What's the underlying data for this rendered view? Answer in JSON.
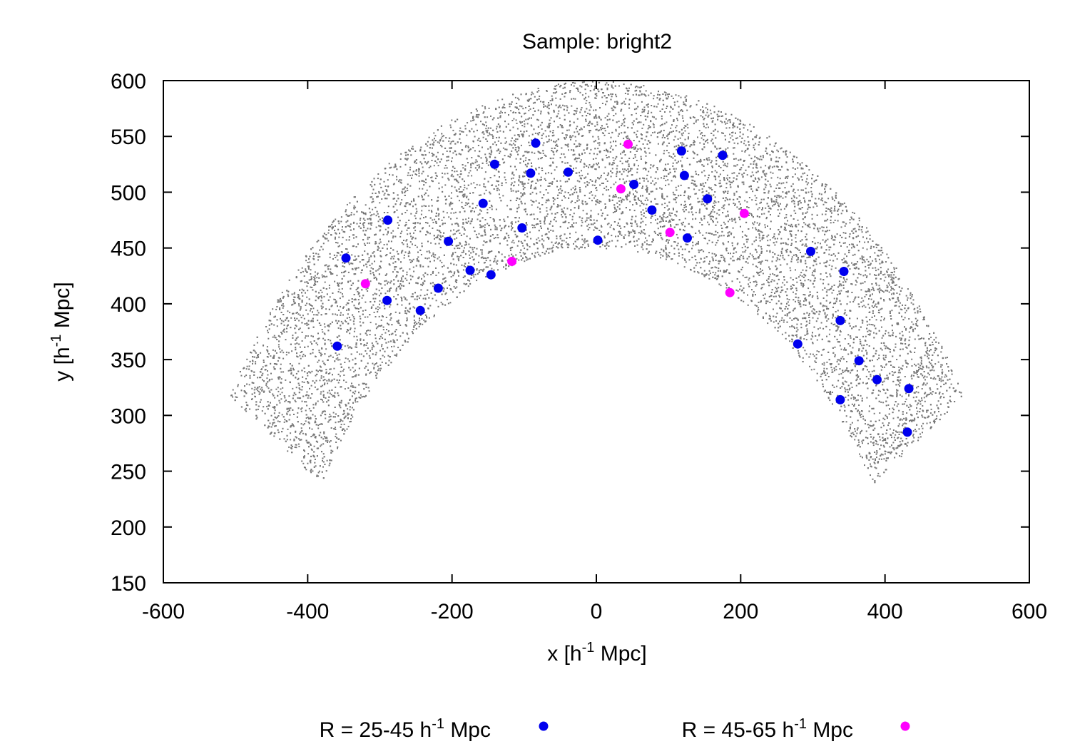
{
  "chart_data": {
    "type": "scatter",
    "title": "Sample: bright2",
    "xlabel": {
      "prefix": "x [h",
      "sup": "-1",
      "suffix": " Mpc]"
    },
    "ylabel": {
      "prefix": "y [h",
      "sup": "-1",
      "suffix": " Mpc]"
    },
    "xlim": [
      -600,
      600
    ],
    "ylim": [
      150,
      600
    ],
    "xticks": [
      -600,
      -400,
      -200,
      0,
      200,
      400,
      600
    ],
    "yticks": [
      150,
      200,
      250,
      300,
      350,
      400,
      450,
      500,
      550,
      600
    ],
    "background_points": {
      "description": "galaxy distribution",
      "color": "#777777",
      "r_inner": 450,
      "r_outer": 600,
      "angle_deg_min": 32,
      "angle_deg_max": 148,
      "count": 12000
    },
    "series": [
      {
        "name": {
          "prefix": "R = 25-45 h",
          "sup": "-1",
          "suffix": " Mpc"
        },
        "color": "#0000ee",
        "points": [
          [
            -84,
            544
          ],
          [
            -141,
            525
          ],
          [
            -91,
            517
          ],
          [
            -39,
            518
          ],
          [
            -157,
            490
          ],
          [
            -289,
            475
          ],
          [
            -347,
            441
          ],
          [
            -103,
            468
          ],
          [
            -205,
            456
          ],
          [
            2,
            457
          ],
          [
            -175,
            430
          ],
          [
            -146,
            426
          ],
          [
            -219,
            414
          ],
          [
            -290,
            403
          ],
          [
            -244,
            394
          ],
          [
            -359,
            362
          ],
          [
            118,
            537
          ],
          [
            175,
            533
          ],
          [
            122,
            515
          ],
          [
            52,
            507
          ],
          [
            154,
            494
          ],
          [
            77,
            484
          ],
          [
            126,
            459
          ],
          [
            297,
            447
          ],
          [
            343,
            429
          ],
          [
            338,
            385
          ],
          [
            279,
            364
          ],
          [
            364,
            349
          ],
          [
            389,
            332
          ],
          [
            433,
            324
          ],
          [
            338,
            314
          ],
          [
            431,
            285
          ]
        ]
      },
      {
        "name": {
          "prefix": "R = 45-65 h",
          "sup": "-1",
          "suffix": " Mpc"
        },
        "color": "#ff00ff",
        "points": [
          [
            44,
            543
          ],
          [
            34,
            503
          ],
          [
            205,
            481
          ],
          [
            102,
            464
          ],
          [
            -117,
            438
          ],
          [
            -320,
            418
          ],
          [
            185,
            410
          ]
        ]
      }
    ],
    "legend_position": "bottom"
  }
}
